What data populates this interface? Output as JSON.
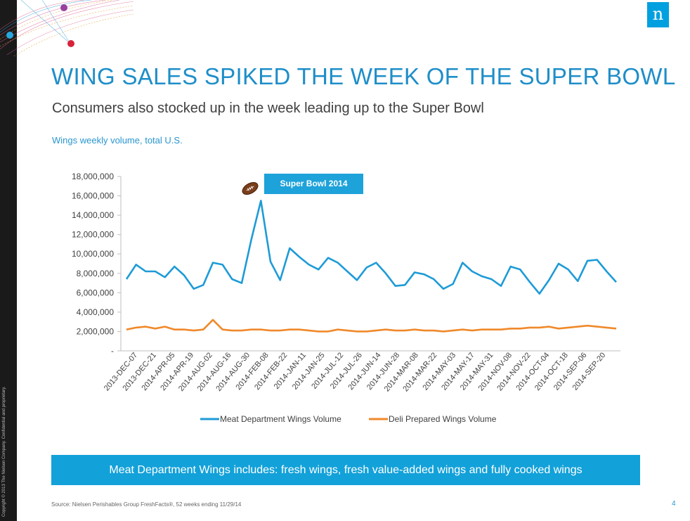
{
  "slide": {
    "title": "WING SALES SPIKED THE WEEK OF THE SUPER BOWL",
    "subtitle": "Consumers also stocked up in the week leading up to the Super Bowl",
    "chart_caption": "Wings weekly volume, total U.S.",
    "callout": "Super Bowl 2014",
    "banner": "Meat Department Wings includes: fresh wings, fresh value-added wings and fully cooked wings",
    "source": "Source: Nielsen Perishables Group FreshFacts®, 52 weeks ending 11/29/14",
    "page_number": "4",
    "logo_letter": "n",
    "copyright": "Copyright © 2013 The Nielsen Company. Confidential and proprietary.",
    "accent_color": "#1e8ec8",
    "icons": [
      "football-icon",
      "decorative-network-graphic"
    ]
  },
  "chart_data": {
    "type": "line",
    "title": "",
    "xlabel": "",
    "ylabel": "",
    "ylim": [
      0,
      18000000
    ],
    "yticks": [
      0,
      2000000,
      4000000,
      6000000,
      8000000,
      10000000,
      12000000,
      14000000,
      16000000,
      18000000
    ],
    "ytick_labels": [
      "-",
      "2,000,000",
      "4,000,000",
      "6,000,000",
      "8,000,000",
      "10,000,000",
      "12,000,000",
      "14,000,000",
      "16,000,000",
      "18,000,000"
    ],
    "x_labels": [
      "2013-DEC-07",
      "2013-DEC-21",
      "2014-APR-05",
      "2014-APR-19",
      "2014-AUG-02",
      "2014-AUG-16",
      "2014-AUG-30",
      "2014-FEB-08",
      "2014-FEB-22",
      "2014-JAN-11",
      "2014-JAN-25",
      "2014-JUL-12",
      "2014-JUL-26",
      "2014-JUN-14",
      "2014-JUN-28",
      "2014-MAR-08",
      "2014-MAR-22",
      "2014-MAY-03",
      "2014-MAY-17",
      "2014-MAY-31",
      "2014-NOV-08",
      "2014-NOV-22",
      "2014-OCT-04",
      "2014-OCT-18",
      "2014-SEP-06",
      "2014-SEP-20"
    ],
    "grid": false,
    "legend_position": "bottom",
    "series": [
      {
        "name": "Meat Department Wings Volume",
        "color": "#1e9bd7",
        "values": [
          7400000,
          8900000,
          8200000,
          8200000,
          7600000,
          8700000,
          7800000,
          6400000,
          6800000,
          9100000,
          8900000,
          7400000,
          7000000,
          11500000,
          15500000,
          9200000,
          7300000,
          10600000,
          9700000,
          8900000,
          8400000,
          9600000,
          9100000,
          8200000,
          7300000,
          8600000,
          9100000,
          8000000,
          6700000,
          6800000,
          8100000,
          7900000,
          7400000,
          6400000,
          6900000,
          9100000,
          8200000,
          7700000,
          7400000,
          6700000,
          8700000,
          8400000,
          7100000,
          5900000,
          7300000,
          9000000,
          8400000,
          7200000,
          9300000,
          9400000,
          8200000,
          7100000
        ]
      },
      {
        "name": "Deli Prepared Wings Volume",
        "color": "#f0892a",
        "values": [
          2200000,
          2400000,
          2500000,
          2300000,
          2500000,
          2200000,
          2200000,
          2100000,
          2200000,
          3200000,
          2200000,
          2100000,
          2100000,
          2200000,
          2200000,
          2100000,
          2100000,
          2200000,
          2200000,
          2100000,
          2000000,
          2000000,
          2200000,
          2100000,
          2000000,
          2000000,
          2100000,
          2200000,
          2100000,
          2100000,
          2200000,
          2100000,
          2100000,
          2000000,
          2100000,
          2200000,
          2100000,
          2200000,
          2200000,
          2200000,
          2300000,
          2300000,
          2400000,
          2400000,
          2500000,
          2300000,
          2400000,
          2500000,
          2600000,
          2500000,
          2400000,
          2300000
        ]
      }
    ]
  }
}
